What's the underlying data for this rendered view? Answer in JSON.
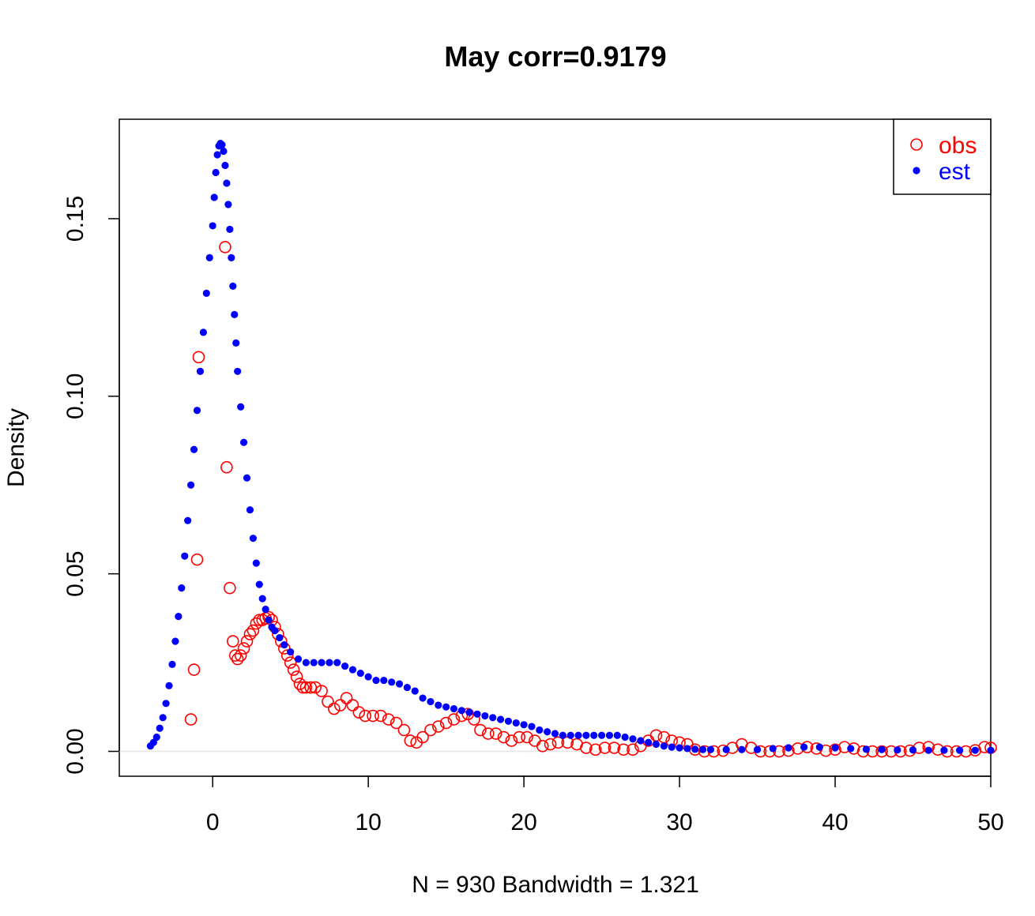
{
  "chart_data": {
    "type": "scatter",
    "title": "May corr=0.9179",
    "xlabel": "N = 930   Bandwidth = 1.321",
    "ylabel": "Density",
    "xlim": [
      -6,
      50
    ],
    "ylim": [
      -0.007,
      0.178
    ],
    "x_ticks": [
      0,
      10,
      20,
      30,
      40,
      50
    ],
    "x_tick_labels": [
      "0",
      "10",
      "20",
      "30",
      "40",
      "50"
    ],
    "y_ticks": [
      0,
      0.05,
      0.1,
      0.15
    ],
    "y_tick_labels": [
      "0.00",
      "0.05",
      "0.10",
      "0.15"
    ],
    "grid": false,
    "baseline_y": 0,
    "legend": {
      "position": "top-right",
      "entries": [
        {
          "label": "obs",
          "marker": "open-circle",
          "color": "#ff0000"
        },
        {
          "label": "est",
          "marker": "filled-circle",
          "color": "#0000ff"
        }
      ]
    },
    "series": [
      {
        "name": "obs",
        "color": "#ff0000",
        "marker": "open-circle",
        "points": [
          [
            -1.4,
            0.009
          ],
          [
            -1.2,
            0.023
          ],
          [
            -1.0,
            0.054
          ],
          [
            -0.9,
            0.111
          ],
          [
            0.8,
            0.142
          ],
          [
            0.9,
            0.08
          ],
          [
            1.1,
            0.046
          ],
          [
            1.3,
            0.031
          ],
          [
            1.45,
            0.027
          ],
          [
            1.6,
            0.026
          ],
          [
            1.8,
            0.027
          ],
          [
            2.0,
            0.029
          ],
          [
            2.2,
            0.031
          ],
          [
            2.4,
            0.033
          ],
          [
            2.6,
            0.034
          ],
          [
            2.8,
            0.036
          ],
          [
            3.0,
            0.037
          ],
          [
            3.2,
            0.037
          ],
          [
            3.4,
            0.0375
          ],
          [
            3.6,
            0.0378
          ],
          [
            3.8,
            0.037
          ],
          [
            4.0,
            0.035
          ],
          [
            4.2,
            0.033
          ],
          [
            4.4,
            0.031
          ],
          [
            4.6,
            0.029
          ],
          [
            4.8,
            0.027
          ],
          [
            5.0,
            0.025
          ],
          [
            5.2,
            0.023
          ],
          [
            5.4,
            0.021
          ],
          [
            5.6,
            0.019
          ],
          [
            5.8,
            0.018
          ],
          [
            6.0,
            0.018
          ],
          [
            6.3,
            0.018
          ],
          [
            6.6,
            0.018
          ],
          [
            7.0,
            0.017
          ],
          [
            7.4,
            0.014
          ],
          [
            7.8,
            0.012
          ],
          [
            8.2,
            0.013
          ],
          [
            8.6,
            0.015
          ],
          [
            9.0,
            0.013
          ],
          [
            9.4,
            0.011
          ],
          [
            9.8,
            0.01
          ],
          [
            10.3,
            0.01
          ],
          [
            10.8,
            0.01
          ],
          [
            11.3,
            0.009
          ],
          [
            11.8,
            0.008
          ],
          [
            12.3,
            0.006
          ],
          [
            12.7,
            0.003
          ],
          [
            13.1,
            0.0025
          ],
          [
            13.5,
            0.004
          ],
          [
            14.0,
            0.006
          ],
          [
            14.5,
            0.007
          ],
          [
            15.0,
            0.008
          ],
          [
            15.5,
            0.009
          ],
          [
            16.0,
            0.01
          ],
          [
            16.4,
            0.0105
          ],
          [
            16.8,
            0.009
          ],
          [
            17.2,
            0.006
          ],
          [
            17.7,
            0.005
          ],
          [
            18.2,
            0.005
          ],
          [
            18.7,
            0.004
          ],
          [
            19.2,
            0.003
          ],
          [
            19.7,
            0.004
          ],
          [
            20.2,
            0.004
          ],
          [
            20.7,
            0.003
          ],
          [
            21.2,
            0.0015
          ],
          [
            21.7,
            0.002
          ],
          [
            22.2,
            0.0025
          ],
          [
            22.8,
            0.0025
          ],
          [
            23.4,
            0.002
          ],
          [
            24.0,
            0.001
          ],
          [
            24.6,
            0.0005
          ],
          [
            25.2,
            0.001
          ],
          [
            25.8,
            0.001
          ],
          [
            26.4,
            0.0005
          ],
          [
            27.0,
            0.0005
          ],
          [
            27.5,
            0.0015
          ],
          [
            28.0,
            0.003
          ],
          [
            28.5,
            0.0045
          ],
          [
            29.0,
            0.004
          ],
          [
            29.5,
            0.003
          ],
          [
            30.0,
            0.0025
          ],
          [
            30.5,
            0.002
          ],
          [
            31.0,
            0.0005
          ],
          [
            31.6,
            0.0
          ],
          [
            32.2,
            0.0
          ],
          [
            32.8,
            0.0002
          ],
          [
            33.4,
            0.001
          ],
          [
            34.0,
            0.002
          ],
          [
            34.6,
            0.001
          ],
          [
            35.2,
            0.0
          ],
          [
            35.8,
            0.0
          ],
          [
            36.4,
            0.0
          ],
          [
            37.0,
            0.0002
          ],
          [
            37.6,
            0.0008
          ],
          [
            38.2,
            0.0012
          ],
          [
            38.8,
            0.0008
          ],
          [
            39.4,
            0.0002
          ],
          [
            40.0,
            0.0005
          ],
          [
            40.6,
            0.0012
          ],
          [
            41.2,
            0.0008
          ],
          [
            41.8,
            0.0
          ],
          [
            42.4,
            0.0
          ],
          [
            43.0,
            0.0
          ],
          [
            43.6,
            0.0
          ],
          [
            44.2,
            0.0
          ],
          [
            44.8,
            0.0002
          ],
          [
            45.4,
            0.001
          ],
          [
            46.0,
            0.0012
          ],
          [
            46.6,
            0.0005
          ],
          [
            47.2,
            0.0
          ],
          [
            47.8,
            0.0
          ],
          [
            48.4,
            0.0
          ],
          [
            49.0,
            0.0003
          ],
          [
            49.6,
            0.0012
          ],
          [
            50.0,
            0.001
          ]
        ]
      },
      {
        "name": "est",
        "color": "#0000ff",
        "marker": "filled-circle",
        "points": [
          [
            -4.0,
            0.0015
          ],
          [
            -3.8,
            0.0025
          ],
          [
            -3.6,
            0.004
          ],
          [
            -3.4,
            0.0065
          ],
          [
            -3.2,
            0.0095
          ],
          [
            -3.0,
            0.0135
          ],
          [
            -2.8,
            0.0185
          ],
          [
            -2.6,
            0.0245
          ],
          [
            -2.4,
            0.031
          ],
          [
            -2.2,
            0.038
          ],
          [
            -2.0,
            0.046
          ],
          [
            -1.8,
            0.055
          ],
          [
            -1.6,
            0.065
          ],
          [
            -1.4,
            0.075
          ],
          [
            -1.2,
            0.085
          ],
          [
            -1.0,
            0.096
          ],
          [
            -0.8,
            0.107
          ],
          [
            -0.6,
            0.118
          ],
          [
            -0.4,
            0.129
          ],
          [
            -0.2,
            0.139
          ],
          [
            0.0,
            0.148
          ],
          [
            0.1,
            0.156
          ],
          [
            0.2,
            0.163
          ],
          [
            0.3,
            0.168
          ],
          [
            0.4,
            0.1705
          ],
          [
            0.5,
            0.1712
          ],
          [
            0.6,
            0.1708
          ],
          [
            0.7,
            0.169
          ],
          [
            0.8,
            0.165
          ],
          [
            0.9,
            0.16
          ],
          [
            1.0,
            0.154
          ],
          [
            1.1,
            0.147
          ],
          [
            1.2,
            0.139
          ],
          [
            1.3,
            0.131
          ],
          [
            1.4,
            0.123
          ],
          [
            1.5,
            0.115
          ],
          [
            1.6,
            0.107
          ],
          [
            1.8,
            0.097
          ],
          [
            2.0,
            0.087
          ],
          [
            2.2,
            0.077
          ],
          [
            2.4,
            0.068
          ],
          [
            2.6,
            0.06
          ],
          [
            2.8,
            0.053
          ],
          [
            3.0,
            0.047
          ],
          [
            3.2,
            0.043
          ],
          [
            3.4,
            0.04
          ],
          [
            3.6,
            0.037
          ],
          [
            3.8,
            0.035
          ],
          [
            4.0,
            0.034
          ],
          [
            4.3,
            0.032
          ],
          [
            4.6,
            0.03
          ],
          [
            5.0,
            0.028
          ],
          [
            5.5,
            0.026
          ],
          [
            6.0,
            0.025
          ],
          [
            6.5,
            0.025
          ],
          [
            7.0,
            0.025
          ],
          [
            7.5,
            0.025
          ],
          [
            8.0,
            0.025
          ],
          [
            8.5,
            0.024
          ],
          [
            9.0,
            0.023
          ],
          [
            9.5,
            0.022
          ],
          [
            10.0,
            0.021
          ],
          [
            10.5,
            0.02
          ],
          [
            11.0,
            0.02
          ],
          [
            11.5,
            0.0195
          ],
          [
            12.0,
            0.019
          ],
          [
            12.5,
            0.018
          ],
          [
            13.0,
            0.017
          ],
          [
            13.5,
            0.015
          ],
          [
            14.0,
            0.014
          ],
          [
            14.5,
            0.013
          ],
          [
            15.0,
            0.0125
          ],
          [
            15.5,
            0.012
          ],
          [
            16.0,
            0.0115
          ],
          [
            16.5,
            0.011
          ],
          [
            17.0,
            0.0105
          ],
          [
            17.5,
            0.01
          ],
          [
            18.0,
            0.0095
          ],
          [
            18.5,
            0.009
          ],
          [
            19.0,
            0.0085
          ],
          [
            19.5,
            0.008
          ],
          [
            20.0,
            0.0075
          ],
          [
            20.5,
            0.007
          ],
          [
            21.0,
            0.006
          ],
          [
            21.5,
            0.0055
          ],
          [
            22.0,
            0.005
          ],
          [
            22.5,
            0.0045
          ],
          [
            23.0,
            0.0045
          ],
          [
            23.5,
            0.0045
          ],
          [
            24.0,
            0.0045
          ],
          [
            24.5,
            0.0045
          ],
          [
            25.0,
            0.0045
          ],
          [
            25.5,
            0.0045
          ],
          [
            26.0,
            0.0045
          ],
          [
            26.5,
            0.004
          ],
          [
            27.0,
            0.0035
          ],
          [
            27.5,
            0.003
          ],
          [
            28.0,
            0.0025
          ],
          [
            28.5,
            0.002
          ],
          [
            29.0,
            0.0015
          ],
          [
            29.5,
            0.0012
          ],
          [
            30.0,
            0.001
          ],
          [
            30.5,
            0.0008
          ],
          [
            31.0,
            0.0006
          ],
          [
            31.5,
            0.0005
          ],
          [
            32.0,
            0.0005
          ],
          [
            33.0,
            0.0005
          ],
          [
            34.0,
            0.0005
          ],
          [
            35.0,
            0.0005
          ],
          [
            36.0,
            0.0008
          ],
          [
            37.0,
            0.001
          ],
          [
            38.0,
            0.0012
          ],
          [
            39.0,
            0.0012
          ],
          [
            40.0,
            0.001
          ],
          [
            41.0,
            0.0008
          ],
          [
            42.0,
            0.0006
          ],
          [
            43.0,
            0.0005
          ],
          [
            44.0,
            0.0004
          ],
          [
            45.0,
            0.0004
          ],
          [
            46.0,
            0.0003
          ],
          [
            47.0,
            0.0003
          ],
          [
            48.0,
            0.0003
          ],
          [
            49.0,
            0.0003
          ],
          [
            50.0,
            0.0003
          ]
        ]
      }
    ]
  }
}
